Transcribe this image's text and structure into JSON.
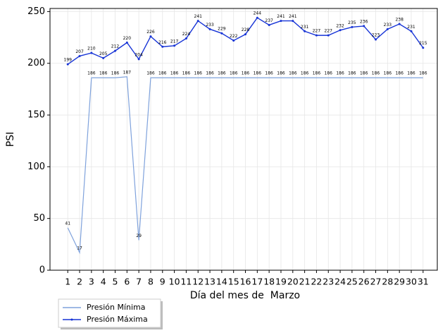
{
  "chart_data": {
    "type": "line",
    "x": [
      1,
      2,
      3,
      4,
      5,
      6,
      7,
      8,
      9,
      10,
      11,
      12,
      13,
      14,
      15,
      16,
      17,
      18,
      19,
      20,
      21,
      22,
      23,
      24,
      25,
      26,
      27,
      28,
      29,
      30,
      31
    ],
    "series": [
      {
        "name": "Presión Mínima",
        "color": "#7fa2dc",
        "values": [
          41,
          17,
          186,
          186,
          186,
          187,
          29,
          186,
          186,
          186,
          186,
          186,
          186,
          186,
          186,
          186,
          186,
          186,
          186,
          186,
          186,
          186,
          186,
          186,
          186,
          186,
          186,
          186,
          186,
          186,
          186
        ]
      },
      {
        "name": "Presión Máxima",
        "color": "#1633d6",
        "markers": true,
        "values": [
          199,
          207,
          210,
          205,
          212,
          220,
          204,
          226,
          216,
          217,
          224,
          241,
          233,
          229,
          222,
          228,
          244,
          237,
          241,
          241,
          231,
          227,
          227,
          232,
          235,
          236,
          223,
          233,
          238,
          231,
          215
        ]
      }
    ],
    "xlabel": "Día del mes de  Marzo",
    "ylabel": "PSI",
    "xlim": [
      -0.5,
      32.2
    ],
    "ylim": [
      0,
      253
    ],
    "xticks": [
      1,
      2,
      3,
      4,
      5,
      6,
      7,
      8,
      9,
      10,
      11,
      12,
      13,
      14,
      15,
      16,
      17,
      18,
      19,
      20,
      21,
      22,
      23,
      24,
      25,
      26,
      27,
      28,
      29,
      30,
      31
    ],
    "yticks": [
      0,
      50,
      100,
      150,
      200,
      250
    ],
    "grid": true,
    "legend": "below-left"
  }
}
